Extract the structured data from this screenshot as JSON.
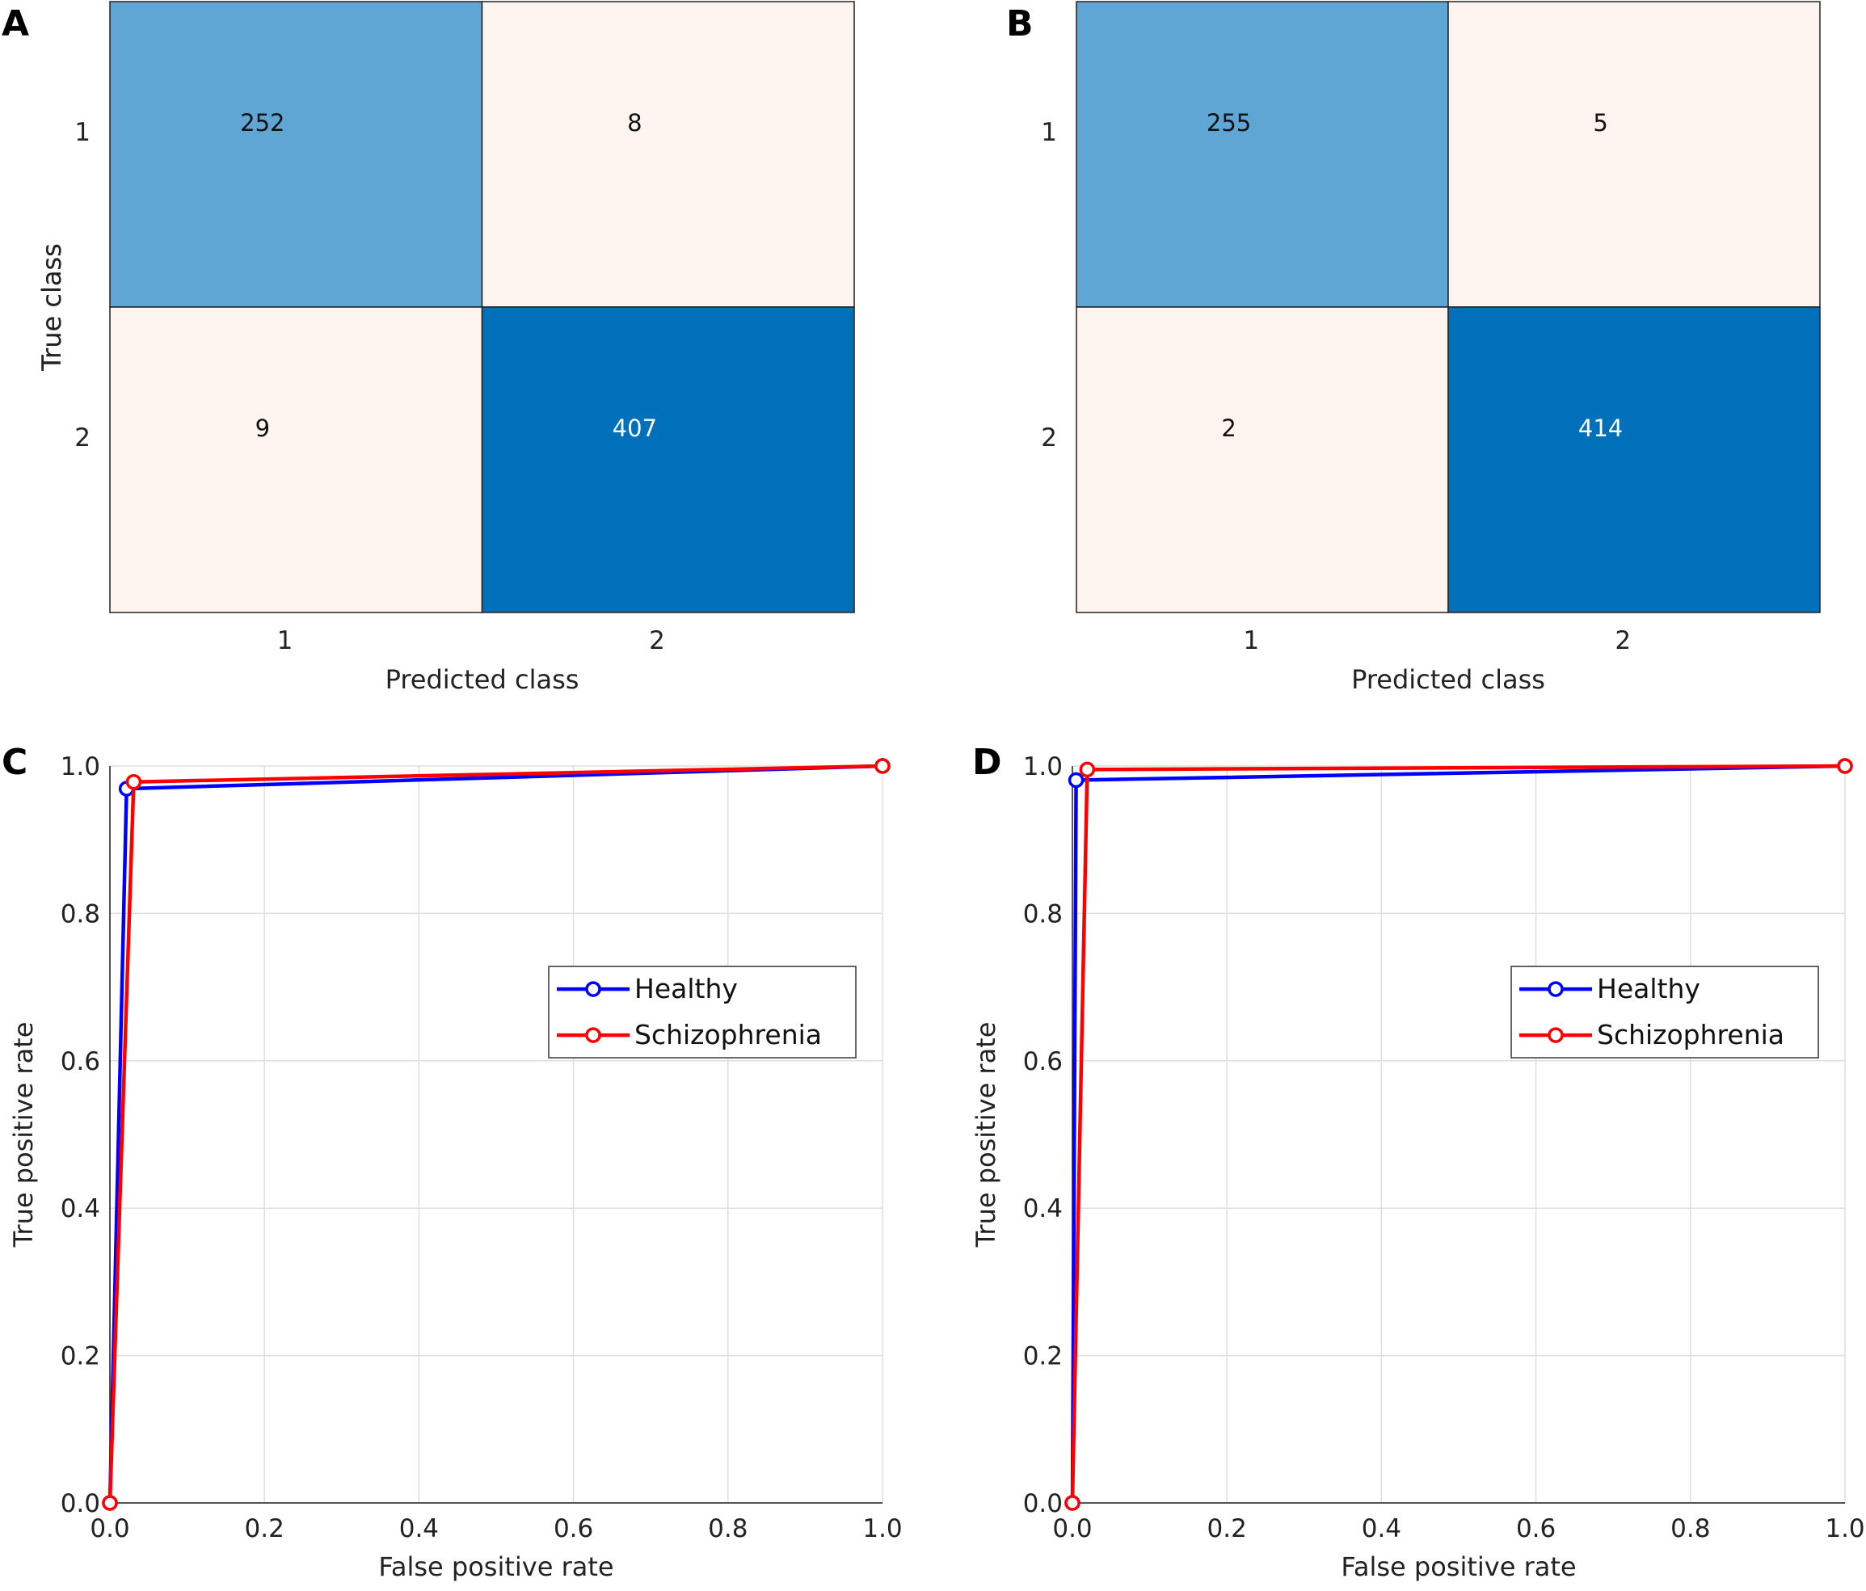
{
  "chart_data": [
    {
      "panel": "A",
      "type": "heatmap",
      "subtype": "confusion-matrix",
      "xlabel": "Predicted class",
      "ylabel": "True class",
      "row_labels": [
        "1",
        "2"
      ],
      "col_labels": [
        "1",
        "2"
      ],
      "values": [
        [
          252,
          8
        ],
        [
          9,
          407
        ]
      ],
      "colors": {
        "low": "#fdf4ef",
        "mid": "#5fa6d5",
        "high": "#0070bb",
        "text_dark": "#111111",
        "text_light": "#ffffff"
      }
    },
    {
      "panel": "B",
      "type": "heatmap",
      "subtype": "confusion-matrix",
      "xlabel": "Predicted class",
      "ylabel": "True class",
      "row_labels": [
        "1",
        "2"
      ],
      "col_labels": [
        "1",
        "2"
      ],
      "values": [
        [
          255,
          5
        ],
        [
          2,
          414
        ]
      ],
      "colors": {
        "low": "#fdf4ef",
        "mid": "#5fa6d5",
        "high": "#0070bb",
        "text_dark": "#111111",
        "text_light": "#ffffff"
      }
    },
    {
      "panel": "C",
      "type": "line",
      "xlabel": "False positive rate",
      "ylabel": "True positive rate",
      "xlim": [
        0,
        1
      ],
      "ylim": [
        0,
        1
      ],
      "xticks": [
        "0.0",
        "0.2",
        "0.4",
        "0.6",
        "0.8",
        "1.0"
      ],
      "yticks": [
        "0.0",
        "0.2",
        "0.4",
        "0.6",
        "0.8",
        "1.0"
      ],
      "grid": true,
      "legend_position": "center-right",
      "series": [
        {
          "name": "Healthy",
          "color": "#0000ff",
          "x": [
            0.0,
            0.0216,
            1.0
          ],
          "y": [
            0.0,
            0.9692,
            1.0
          ]
        },
        {
          "name": "Schizophrenia",
          "color": "#ff0000",
          "x": [
            0.0,
            0.0308,
            1.0
          ],
          "y": [
            0.0,
            0.9784,
            1.0
          ]
        }
      ]
    },
    {
      "panel": "D",
      "type": "line",
      "xlabel": "False positive rate",
      "ylabel": "True positive rate",
      "xlim": [
        0,
        1
      ],
      "ylim": [
        0,
        1
      ],
      "xticks": [
        "0.0",
        "0.2",
        "0.4",
        "0.6",
        "0.8",
        "1.0"
      ],
      "yticks": [
        "0.0",
        "0.2",
        "0.4",
        "0.6",
        "0.8",
        "1.0"
      ],
      "grid": true,
      "legend_position": "center-right",
      "series": [
        {
          "name": "Healthy",
          "color": "#0000ff",
          "x": [
            0.0,
            0.0048,
            1.0
          ],
          "y": [
            0.0,
            0.9808,
            1.0
          ]
        },
        {
          "name": "Schizophrenia",
          "color": "#ff0000",
          "x": [
            0.0,
            0.0192,
            1.0
          ],
          "y": [
            0.0,
            0.9952,
            1.0
          ]
        }
      ]
    }
  ]
}
